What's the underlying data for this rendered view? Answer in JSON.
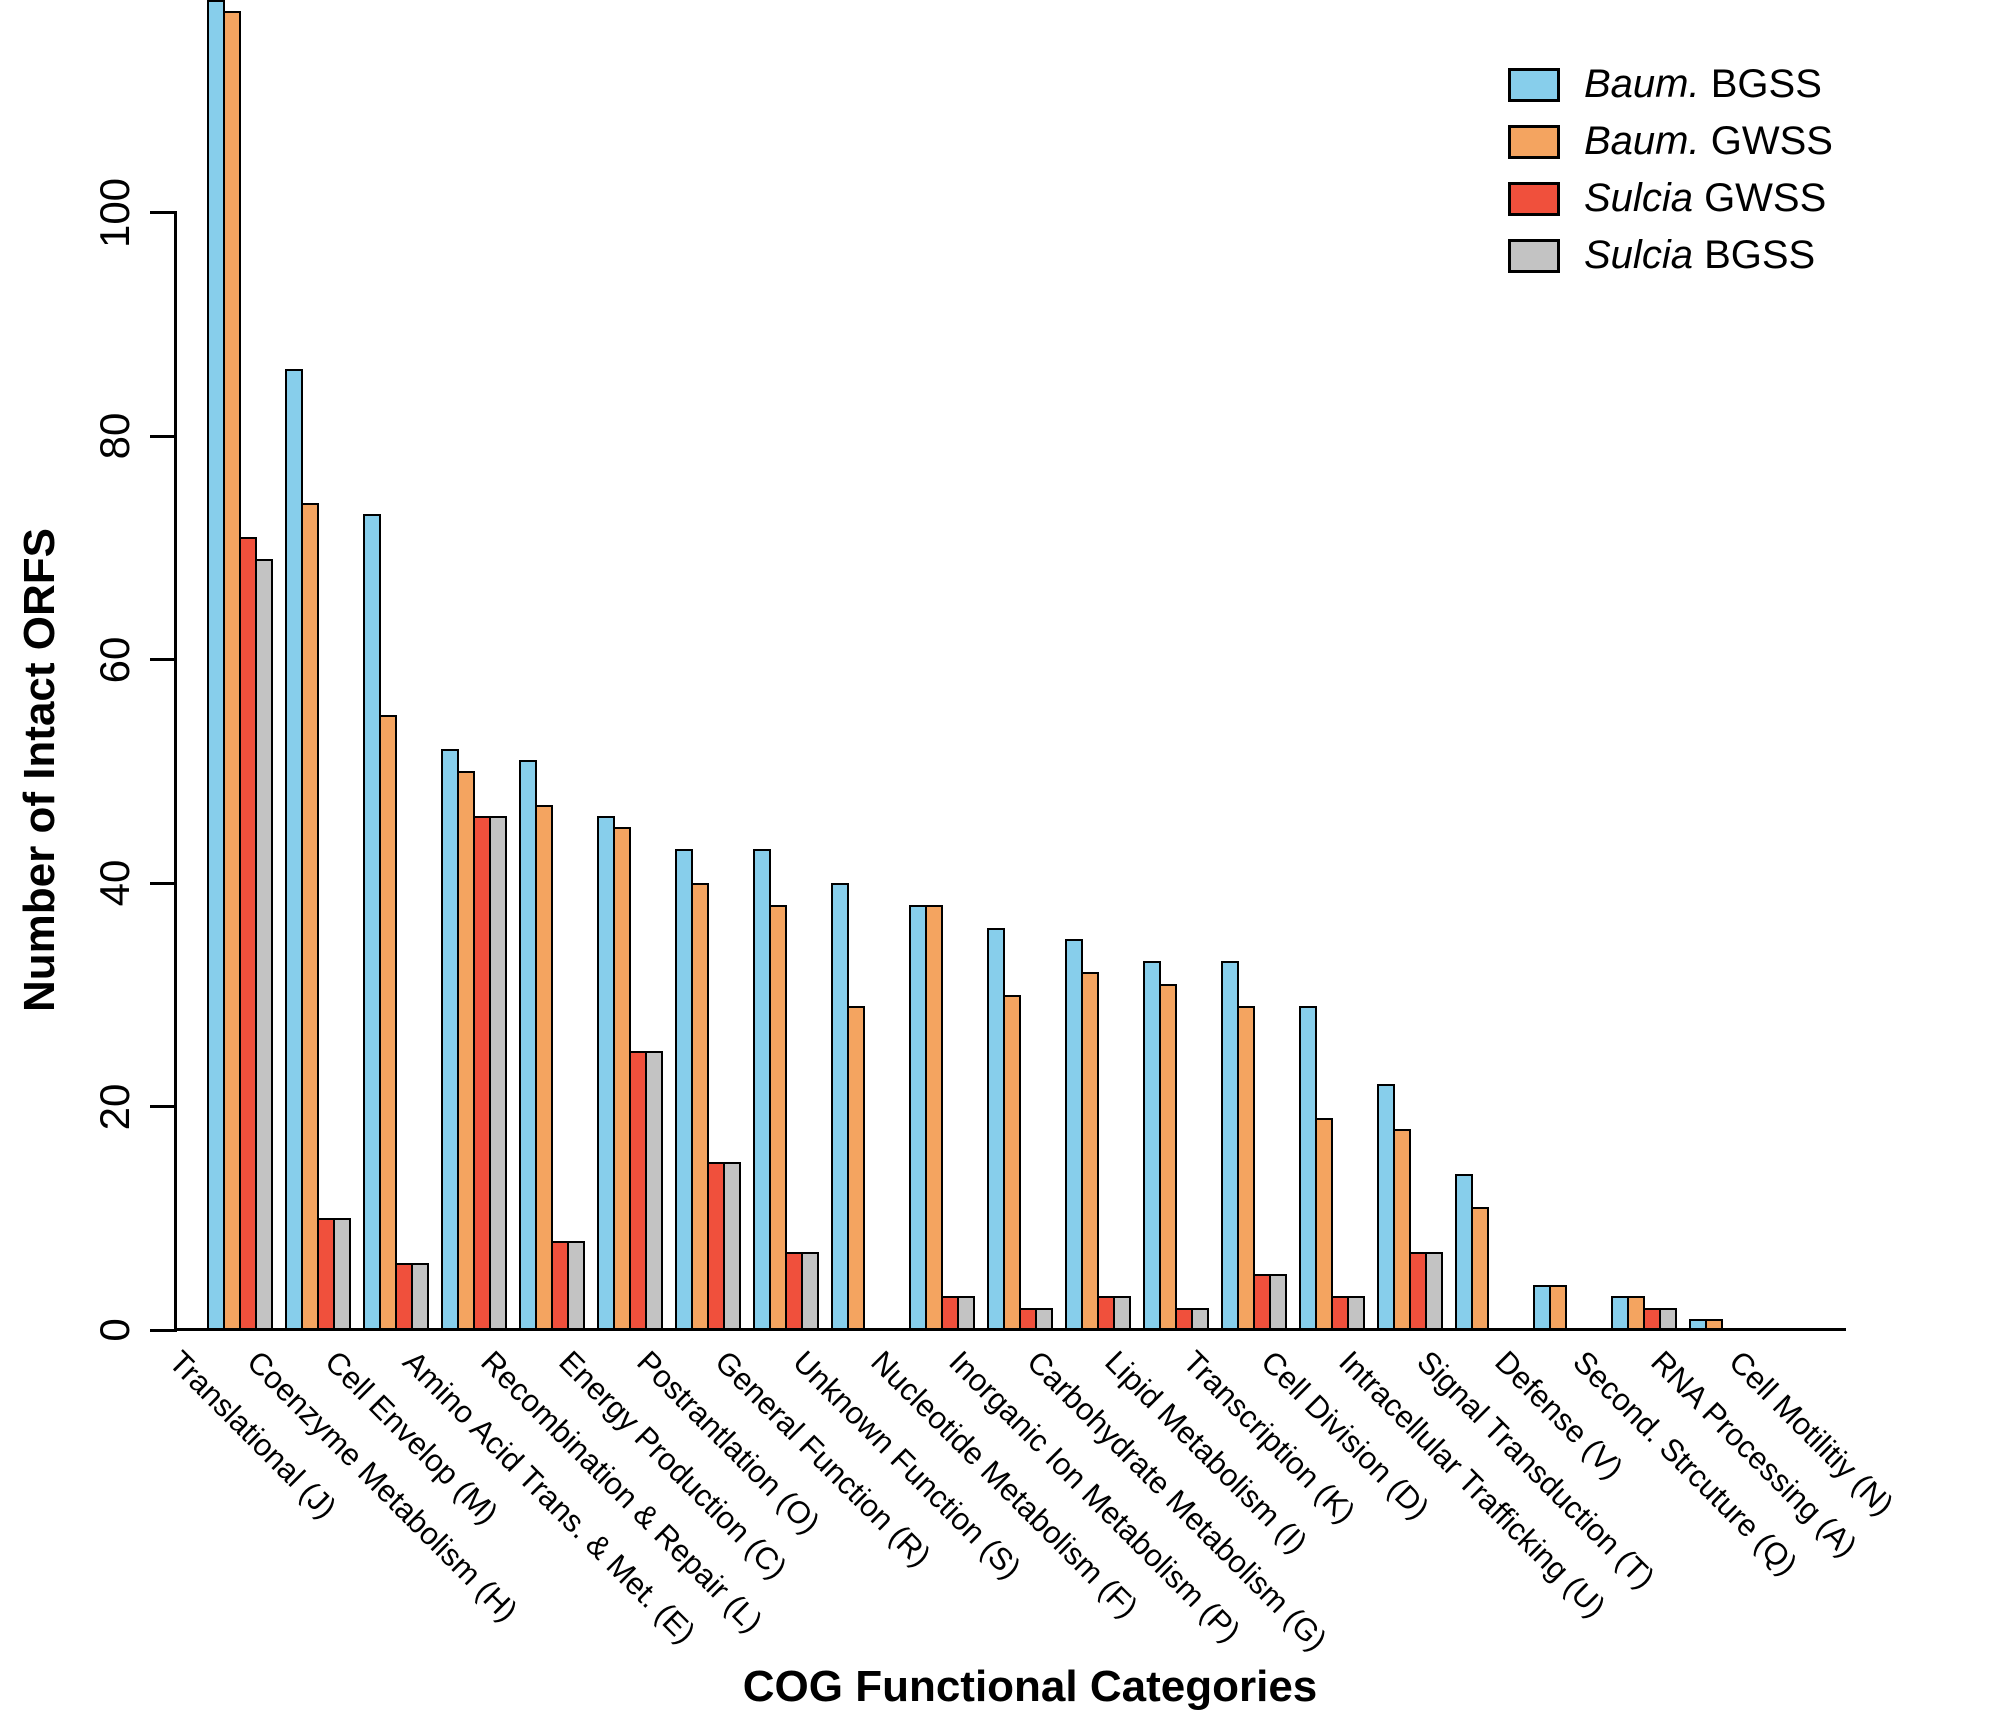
{
  "axes": {
    "ylabel": "Number of Intact ORFS",
    "xlabel": "COG Functional Categories",
    "y_ticks": [
      0,
      20,
      40,
      60,
      80,
      100
    ]
  },
  "legend": {
    "items": [
      {
        "genus": "Baum.",
        "code": "BGSS",
        "color": "#87CEEB"
      },
      {
        "genus": "Baum.",
        "code": "GWSS",
        "color": "#F4A460"
      },
      {
        "genus": "Sulcia",
        "code": "GWSS",
        "color": "#F0503C"
      },
      {
        "genus": "Sulcia",
        "code": "BGSS",
        "color": "#C3C3C3"
      }
    ]
  },
  "chart_data": {
    "type": "bar",
    "title": "",
    "xlabel": "COG Functional Categories",
    "ylabel": "Number of Intact ORFS",
    "ylim": [
      0,
      120
    ],
    "grid": false,
    "legend_position": "top-right",
    "categories": [
      "Translational (J)",
      "Coenzyme Metabolism (H)",
      "Cell Envelop (M)",
      "Amino Acid Trans. & Met. (E)",
      "Recombination & Repair (L)",
      "Energy Production (C)",
      "Postrantlation (O)",
      "General Function (R)",
      "Unknown Function (S)",
      "Nucleotide Metabolism (F)",
      "Inorganic Ion Metabolism (P)",
      "Carbohydrate Metabolism (G)",
      "Lipid Metabolism (I)",
      "Transcription (K)",
      "Cell Division (D)",
      "Intracellular Trafficking (U)",
      "Signal Transduction (T)",
      "Defense (V)",
      "Second. Strcuture (Q)",
      "RNA Processing (A)",
      "Cell Motilitiy (N)"
    ],
    "series": [
      {
        "name": "Baum. BGSS",
        "color": "#87CEEB",
        "values": [
          119,
          86,
          73,
          52,
          51,
          46,
          43,
          43,
          40,
          38,
          36,
          35,
          33,
          33,
          29,
          22,
          14,
          4,
          3,
          1,
          0
        ]
      },
      {
        "name": "Baum. GWSS",
        "color": "#F4A460",
        "values": [
          118,
          74,
          55,
          50,
          47,
          45,
          40,
          38,
          29,
          38,
          30,
          32,
          31,
          29,
          19,
          18,
          11,
          4,
          3,
          1,
          0
        ]
      },
      {
        "name": "Sulcia GWSS",
        "color": "#F0503C",
        "values": [
          71,
          10,
          6,
          46,
          8,
          25,
          15,
          7,
          0,
          3,
          2,
          3,
          2,
          5,
          3,
          7,
          0,
          0,
          2,
          0,
          0
        ]
      },
      {
        "name": "Sulcia BGSS",
        "color": "#C3C3C3",
        "values": [
          69,
          10,
          6,
          46,
          8,
          25,
          15,
          7,
          0,
          3,
          2,
          3,
          2,
          5,
          3,
          7,
          0,
          0,
          2,
          0,
          0
        ]
      }
    ]
  }
}
